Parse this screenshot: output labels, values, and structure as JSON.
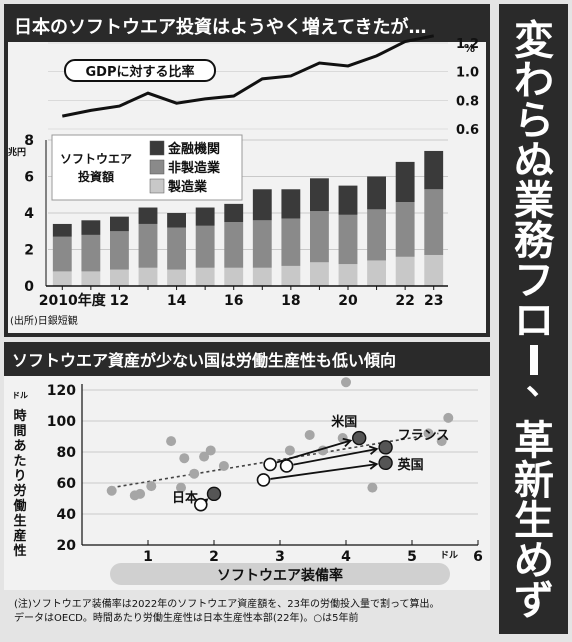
{
  "side_title": "変わらぬ業務フロー、革新生めず",
  "chart_data": [
    {
      "type": "bar",
      "title": "日本のソフトウエア投資はようやく増えてきたが…",
      "ylabel": "兆円",
      "y2label": "%",
      "ylim": [
        0,
        8
      ],
      "y2lim": [
        0.6,
        1.2
      ],
      "yticks": [
        0,
        2,
        4,
        6,
        8
      ],
      "y2ticks": [
        "0.6",
        "0.8",
        "1.0",
        "1.2"
      ],
      "x_tick_labels": [
        {
          "x": 2010,
          "label": "2010年度"
        },
        {
          "x": 2012,
          "label": "12"
        },
        {
          "x": 2014,
          "label": "14"
        },
        {
          "x": 2016,
          "label": "16"
        },
        {
          "x": 2018,
          "label": "18"
        },
        {
          "x": 2020,
          "label": "20"
        },
        {
          "x": 2022,
          "label": "22"
        },
        {
          "x": 2023,
          "label": "23"
        }
      ],
      "legend_title": "ソフトウエア投資額",
      "legend_position": "top-left",
      "categories": [
        2010,
        2011,
        2012,
        2013,
        2014,
        2015,
        2016,
        2017,
        2018,
        2019,
        2020,
        2021,
        2022,
        2023
      ],
      "stacked": true,
      "series": [
        {
          "name": "製造業",
          "color": "#c8c8c8",
          "values": [
            0.8,
            0.8,
            0.9,
            1.0,
            0.9,
            1.0,
            1.0,
            1.0,
            1.1,
            1.3,
            1.2,
            1.4,
            1.6,
            1.7
          ]
        },
        {
          "name": "非製造業",
          "color": "#8a8a8a",
          "values": [
            1.9,
            2.0,
            2.1,
            2.4,
            2.3,
            2.3,
            2.5,
            2.6,
            2.6,
            2.8,
            2.7,
            2.8,
            3.0,
            3.6
          ]
        },
        {
          "name": "金融機関",
          "color": "#3a3a3a",
          "values": [
            0.7,
            0.8,
            0.8,
            0.9,
            0.8,
            1.0,
            1.0,
            1.7,
            1.6,
            1.8,
            1.6,
            1.8,
            2.2,
            2.1
          ]
        }
      ],
      "line_series": {
        "name": "GDPに対する比率",
        "axis": "right",
        "values": [
          0.69,
          0.73,
          0.76,
          0.85,
          0.78,
          0.81,
          0.83,
          0.95,
          0.97,
          1.06,
          1.04,
          1.11,
          1.21,
          1.25
        ]
      },
      "source": "(出所)日銀短観"
    },
    {
      "type": "scatter",
      "title": "ソフトウエア資産が少ない国は労働生産性も低い傾向",
      "xlabel": "ソフトウエア装備率",
      "xunit": "ドル",
      "ylabel": "時間あたり労働生産性",
      "yunit": "ドル",
      "xlim": [
        0,
        6
      ],
      "ylim": [
        20,
        120
      ],
      "xticks": [
        0,
        1,
        2,
        3,
        4,
        5,
        6
      ],
      "yticks": [
        20,
        40,
        60,
        80,
        100,
        120
      ],
      "trendline": {
        "x": [
          0.45,
          5.4
        ],
        "y": [
          57,
          92
        ]
      },
      "points": [
        {
          "x": 0.45,
          "y": 55
        },
        {
          "x": 0.8,
          "y": 52
        },
        {
          "x": 0.88,
          "y": 53
        },
        {
          "x": 1.05,
          "y": 58
        },
        {
          "x": 1.35,
          "y": 87
        },
        {
          "x": 1.5,
          "y": 57
        },
        {
          "x": 1.55,
          "y": 76
        },
        {
          "x": 1.7,
          "y": 66
        },
        {
          "x": 1.85,
          "y": 77
        },
        {
          "x": 1.95,
          "y": 81
        },
        {
          "x": 2.15,
          "y": 71
        },
        {
          "x": 3.15,
          "y": 81
        },
        {
          "x": 3.45,
          "y": 91
        },
        {
          "x": 3.65,
          "y": 81
        },
        {
          "x": 3.95,
          "y": 89
        },
        {
          "x": 4.0,
          "y": 125
        },
        {
          "x": 4.4,
          "y": 57
        },
        {
          "x": 5.25,
          "y": 92
        },
        {
          "x": 5.45,
          "y": 87
        },
        {
          "x": 5.55,
          "y": 102
        }
      ],
      "highlighted": [
        {
          "name": "米国",
          "from": [
            2.85,
            72
          ],
          "to": [
            4.2,
            89
          ]
        },
        {
          "name": "フランス",
          "from": [
            3.1,
            71
          ],
          "to": [
            4.6,
            83
          ]
        },
        {
          "name": "英国",
          "from": [
            2.75,
            62
          ],
          "to": [
            4.6,
            73
          ]
        },
        {
          "name": "日本",
          "from": [
            1.8,
            46
          ],
          "to": [
            2.0,
            53
          ]
        }
      ],
      "note_line1": "(注)ソフトウエア装備率は2022年のソフトウエア資産額を、23年の労働投入量で割って算出。",
      "note_line2_prefix": "データはOECD。時間あたり労働生産性は日本生産性本部(22年)。",
      "note_line2_suffix": "は5年前"
    }
  ]
}
